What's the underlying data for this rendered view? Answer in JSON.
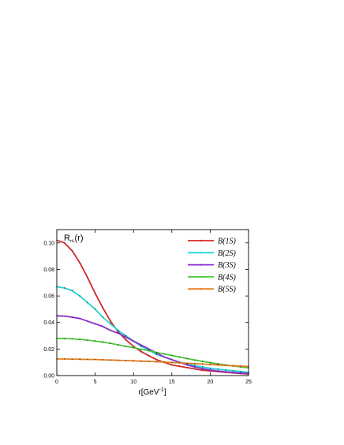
{
  "chart_data": {
    "type": "line",
    "ylabel": {
      "main": "R",
      "sub": "nL",
      "suffix": "(r)"
    },
    "xlabel": {
      "main": "r[GeV",
      "sup": "-1",
      "suffix": "]"
    },
    "xlim": [
      0,
      25
    ],
    "ylim": [
      0,
      0.11
    ],
    "x_ticks": [
      0,
      5,
      10,
      15,
      20,
      25
    ],
    "x_tick_labels": [
      "0",
      "5",
      "10",
      "15",
      "20",
      "25"
    ],
    "y_ticks": [
      0.0,
      0.02,
      0.04,
      0.06,
      0.08,
      0.1
    ],
    "y_tick_labels": [
      "0.00",
      "0.02",
      "0.04",
      "0.06",
      "0.08",
      "0.10"
    ],
    "grid": false,
    "legend_position": "top-right",
    "x": [
      0,
      1,
      2,
      3,
      4,
      5,
      6,
      7,
      8,
      9,
      10,
      11,
      12,
      13,
      14,
      15,
      16,
      17,
      18,
      19,
      20,
      21,
      22,
      23,
      24,
      25
    ],
    "series": [
      {
        "name": "B(1S)",
        "color": "#d62728",
        "values": [
          0.102,
          0.1,
          0.094,
          0.085,
          0.074,
          0.062,
          0.051,
          0.041,
          0.033,
          0.027,
          0.022,
          0.018,
          0.015,
          0.012,
          0.01,
          0.008,
          0.007,
          0.006,
          0.005,
          0.004,
          0.0035,
          0.003,
          0.0025,
          0.002,
          0.0015,
          0.0012
        ]
      },
      {
        "name": "B(2S)",
        "color": "#22d3d3",
        "values": [
          0.067,
          0.066,
          0.064,
          0.06,
          0.055,
          0.05,
          0.044,
          0.039,
          0.034,
          0.03,
          0.026,
          0.022,
          0.019,
          0.016,
          0.014,
          0.012,
          0.01,
          0.009,
          0.0075,
          0.0065,
          0.0055,
          0.0048,
          0.0042,
          0.0036,
          0.003,
          0.0025
        ]
      },
      {
        "name": "B(3S)",
        "color": "#8b2bd6",
        "values": [
          0.045,
          0.0448,
          0.044,
          0.043,
          0.041,
          0.039,
          0.037,
          0.034,
          0.032,
          0.029,
          0.026,
          0.023,
          0.02,
          0.017,
          0.014,
          0.012,
          0.01,
          0.008,
          0.0065,
          0.0052,
          0.0042,
          0.0034,
          0.0028,
          0.0023,
          0.0019,
          0.0016
        ]
      },
      {
        "name": "B(4S)",
        "color": "#4cc93a",
        "values": [
          0.028,
          0.0279,
          0.0277,
          0.0273,
          0.0267,
          0.026,
          0.0252,
          0.0243,
          0.0232,
          0.022,
          0.021,
          0.0198,
          0.0187,
          0.0175,
          0.0163,
          0.0152,
          0.014,
          0.0128,
          0.0117,
          0.0107,
          0.0097,
          0.0088,
          0.008,
          0.0072,
          0.0065,
          0.0058
        ]
      },
      {
        "name": "B(5S)",
        "color": "#e87d1e",
        "values": [
          0.0125,
          0.0125,
          0.0124,
          0.0123,
          0.0122,
          0.0121,
          0.0119,
          0.0117,
          0.0115,
          0.0113,
          0.0111,
          0.0109,
          0.0107,
          0.0104,
          0.0102,
          0.0099,
          0.0096,
          0.0093,
          0.009,
          0.0087,
          0.0083,
          0.008,
          0.0077,
          0.0074,
          0.0071,
          0.0068
        ]
      }
    ]
  }
}
